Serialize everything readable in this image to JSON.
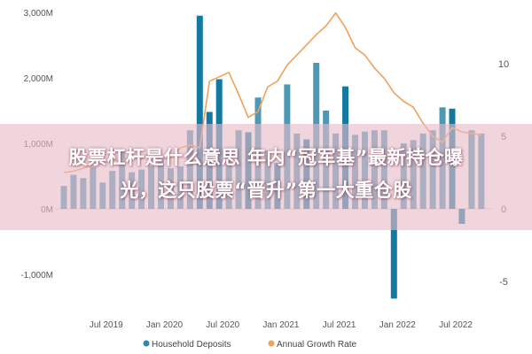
{
  "chart_data": {
    "type": "bar+line",
    "title": "",
    "categories": [
      "2019-03",
      "2019-04",
      "2019-05",
      "2019-06",
      "2019-07",
      "2019-08",
      "2019-09",
      "2019-10",
      "2019-11",
      "2019-12",
      "2020-01",
      "2020-02",
      "2020-03",
      "2020-04",
      "2020-05",
      "2020-06",
      "2020-07",
      "2020-08",
      "2020-09",
      "2020-10",
      "2020-11",
      "2020-12",
      "2021-01",
      "2021-02",
      "2021-03",
      "2021-04",
      "2021-05",
      "2021-06",
      "2021-07",
      "2021-08",
      "2021-09",
      "2021-10",
      "2021-11",
      "2021-12",
      "2022-01",
      "2022-02",
      "2022-03",
      "2022-04",
      "2022-05",
      "2022-06",
      "2022-07",
      "2022-08",
      "2022-09",
      "2022-10"
    ],
    "x_tick_labels": [
      {
        "label": "Jul 2019",
        "index": 4
      },
      {
        "label": "Jan 2020",
        "index": 10
      },
      {
        "label": "Jul 2020",
        "index": 16
      },
      {
        "label": "Jan 2021",
        "index": 22
      },
      {
        "label": "Jul 2021",
        "index": 28
      },
      {
        "label": "Jan 2022",
        "index": 34
      },
      {
        "label": "Jul 2022",
        "index": 40
      }
    ],
    "series": [
      {
        "name": "Household Deposits",
        "type": "bar",
        "axis": "left",
        "color": "#2e86a8",
        "highlight_color": "#1479a0",
        "values": [
          350,
          520,
          470,
          640,
          400,
          580,
          870,
          560,
          600,
          660,
          790,
          620,
          650,
          1200,
          2950,
          1480,
          1980,
          880,
          1200,
          1170,
          1700,
          890,
          700,
          1900,
          1150,
          1060,
          2230,
          1500,
          1150,
          1870,
          1130,
          1180,
          1200,
          1200,
          -1370,
          1000,
          1050,
          1150,
          1200,
          1550,
          1530,
          -230,
          1200,
          1150
        ],
        "highlighted_indices": [
          14,
          15,
          16,
          19,
          22,
          25,
          29,
          34,
          40,
          41
        ]
      },
      {
        "name": "Annual Growth Rate",
        "type": "line",
        "axis": "right",
        "color": "#f2a15a",
        "values": [
          2.5,
          2.6,
          2.8,
          3.0,
          3.1,
          3.4,
          3.3,
          3.7,
          3.4,
          4.0,
          3.4,
          3.5,
          4.2,
          4.4,
          4.2,
          8.8,
          9.1,
          9.4,
          7.9,
          6.3,
          6.7,
          8.4,
          8.8,
          9.9,
          10.6,
          11.3,
          12.0,
          12.6,
          13.5,
          12.5,
          11.1,
          10.6,
          9.7,
          9.0,
          8.0,
          7.4,
          7.0,
          5.9,
          5.0,
          4.6,
          5.6,
          5.3,
          5.2,
          5.1
        ]
      }
    ],
    "y_left": {
      "min": -1200,
      "max": 3000,
      "ticks": [
        -1000,
        0,
        1000,
        2000,
        3000
      ],
      "tick_labels": [
        "-1,000M",
        "0M",
        "1,000M",
        "2,000M",
        "3,000M"
      ]
    },
    "y_right": {
      "ticks": [
        -5,
        0,
        5,
        10
      ],
      "tick_labels": [
        "-5",
        "0",
        "5",
        "10"
      ]
    },
    "xlabel": "",
    "ylabel": "",
    "grid": false,
    "legend_position": "bottom-center"
  },
  "banner": {
    "line1": "股票杠杆是什么意思 年内“冠军基”最新持仓曝",
    "line2": "光，这只股票“晋升”第一大重仓股"
  }
}
